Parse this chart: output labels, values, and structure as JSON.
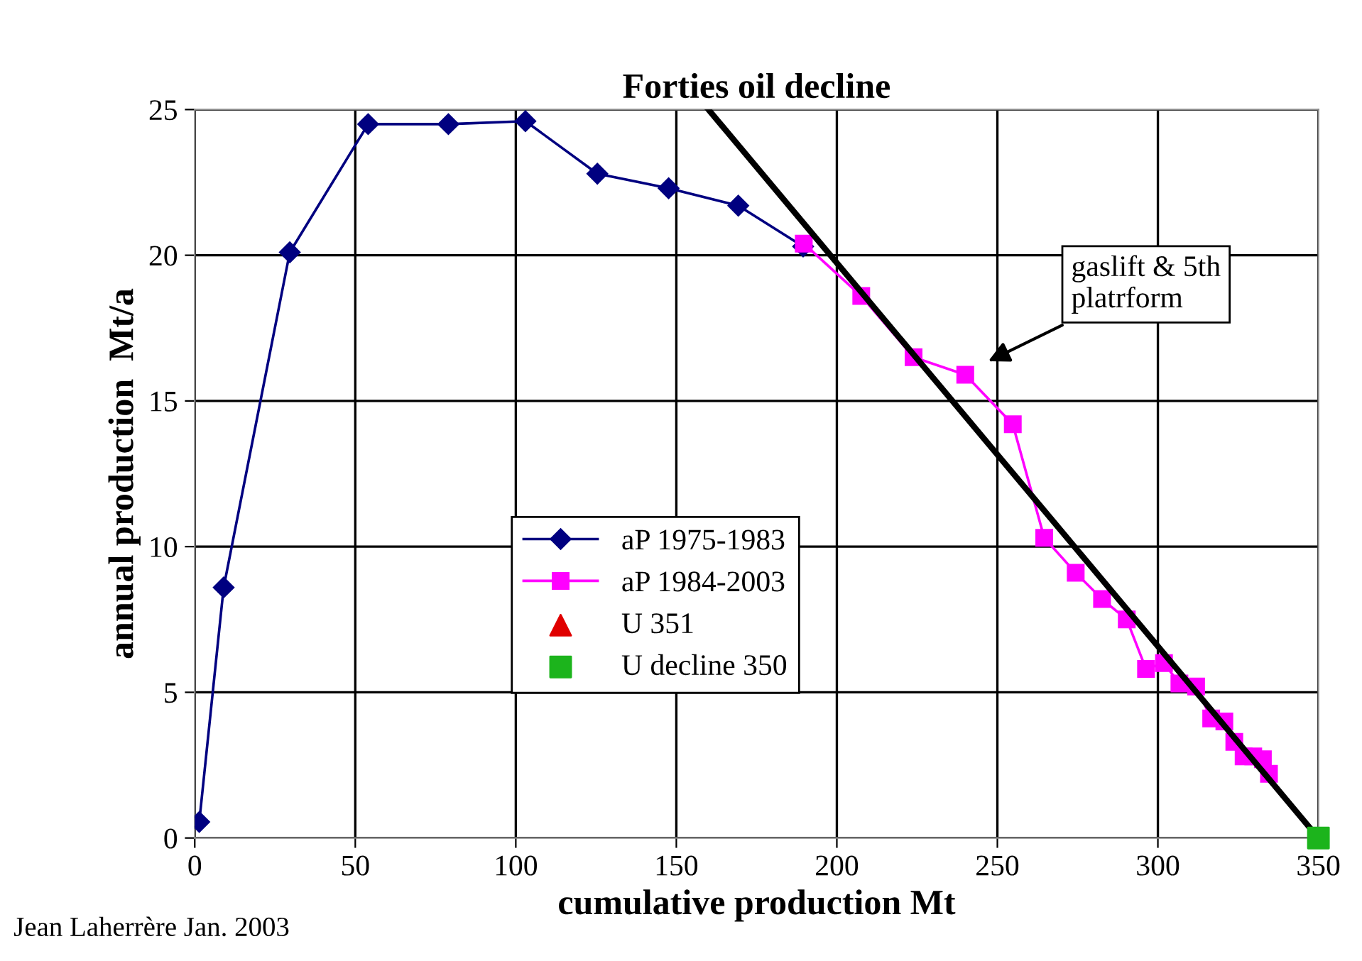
{
  "chart_data": {
    "type": "line",
    "title": "Forties oil decline",
    "xlabel": "cumulative production Mt",
    "ylabel": "annual production  Mt/a",
    "xlim": [
      0,
      350
    ],
    "xticks": [
      0,
      50,
      100,
      150,
      200,
      250,
      300,
      350
    ],
    "ylim": [
      0,
      25
    ],
    "yticks": [
      0,
      5,
      10,
      15,
      20,
      25
    ],
    "grid": true,
    "legend": "center",
    "series": [
      {
        "name": "aP 1975-1983",
        "color": "#000080",
        "marker": "diamond",
        "x": [
          1.4,
          9,
          29.6,
          54,
          79,
          103,
          125.4,
          147.6,
          169.3,
          189.5
        ],
        "values": [
          0.55,
          8.6,
          20.1,
          24.5,
          24.5,
          24.6,
          22.8,
          22.3,
          21.7,
          20.3
        ]
      },
      {
        "name": "aP 1984-2003",
        "color": "#ff00ff",
        "marker": "square",
        "x": [
          189.7,
          207.6,
          223.9,
          240,
          254.8,
          264.6,
          274.4,
          282.6,
          290.3,
          296.3,
          301.9,
          306.7,
          311.9,
          316.6,
          320.7,
          323.8,
          326.7,
          329.7,
          332.7,
          334.6
        ],
        "values": [
          20.4,
          18.6,
          16.5,
          15.9,
          14.2,
          10.3,
          9.1,
          8.2,
          7.5,
          5.8,
          6.0,
          5.3,
          5.2,
          4.1,
          4.0,
          3.3,
          2.8,
          2.8,
          2.7,
          2.2
        ]
      },
      {
        "name": "U 351",
        "type": "scatter",
        "color": "#e00000",
        "marker": "triangle",
        "x": [
          null
        ],
        "values": [
          null
        ]
      },
      {
        "name": "U decline 350",
        "type": "scatter",
        "color": "#1cb41c",
        "marker": "square",
        "x": [
          350
        ],
        "values": [
          0
        ]
      },
      {
        "type": "line",
        "color": "#000000",
        "marker": "none",
        "x": [
          160,
          350
        ],
        "values": [
          25,
          0
        ]
      }
    ],
    "annotations": [
      "gaslift & 5th\nplatrform",
      "Jean Laherrère Jan. 2003"
    ]
  }
}
